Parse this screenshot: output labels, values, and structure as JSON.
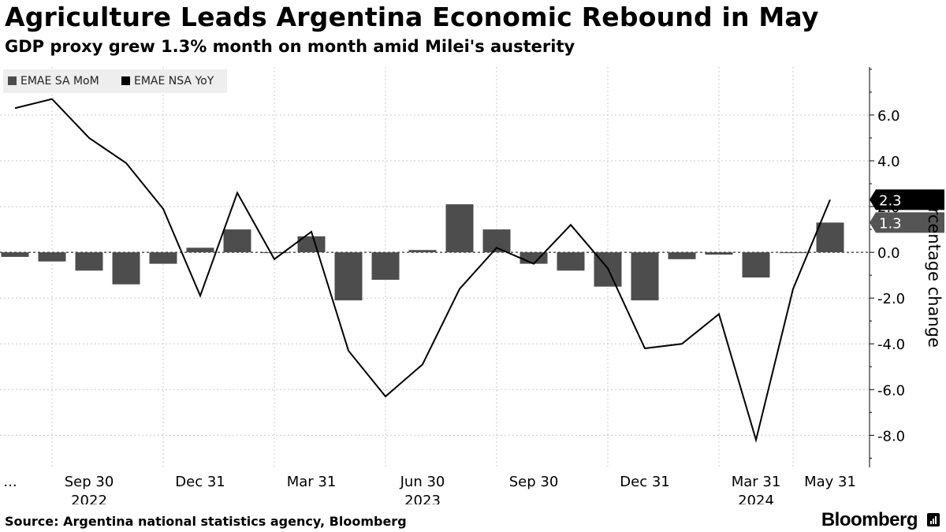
{
  "header": {
    "title": "Agriculture Leads Argentina Economic Rebound in May",
    "subtitle": "GDP proxy grew 1.3% month on month amid Milei's austerity"
  },
  "footer": {
    "source": "Source: Argentina national statistics agency, Bloomberg",
    "brand": "Bloomberg"
  },
  "chart_data": {
    "type": "bar",
    "title": "Agriculture Leads Argentina Economic Rebound in May",
    "subtitle": "GDP proxy grew 1.3% month on month amid Milei's austerity",
    "ylabel": "Percentage change",
    "xlabel": "",
    "ylim": [
      -9.4,
      8.1
    ],
    "y_ticks": [
      6.0,
      4.0,
      2.0,
      0.0,
      -2.0,
      -4.0,
      -6.0,
      -8.0
    ],
    "y_tick_labels": [
      "6.0",
      "4.0",
      "2.0",
      "0.0",
      "-2.0",
      "-4.0",
      "-6.0",
      "-8.0"
    ],
    "categories": [
      "Jul 2022",
      "Aug 2022",
      "Sep 2022",
      "Oct 2022",
      "Nov 2022",
      "Dec 2022",
      "Jan 2023",
      "Feb 2023",
      "Mar 2023",
      "Apr 2023",
      "May 2023",
      "Jun 2023",
      "Jul 2023",
      "Aug 2023",
      "Sep 2023",
      "Oct 2023",
      "Nov 2023",
      "Dec 2023",
      "Jan 2024",
      "Feb 2024",
      "Mar 2024",
      "Apr 2024",
      "May 2024"
    ],
    "x_ticks": [
      {
        "index": 0,
        "label": "...",
        "year": ""
      },
      {
        "index": 2,
        "label": "Sep 30",
        "year": "2022"
      },
      {
        "index": 5,
        "label": "Dec 31",
        "year": ""
      },
      {
        "index": 8,
        "label": "Mar 31",
        "year": ""
      },
      {
        "index": 11,
        "label": "Jun 30",
        "year": "2023"
      },
      {
        "index": 14,
        "label": "Sep 30",
        "year": ""
      },
      {
        "index": 17,
        "label": "Dec 31",
        "year": ""
      },
      {
        "index": 20,
        "label": "Mar 31",
        "year": "2024"
      },
      {
        "index": 22,
        "label": "May 31",
        "year": ""
      }
    ],
    "grid": true,
    "legend_position": "top-left",
    "series": [
      {
        "name": "EMAE SA MoM",
        "kind": "bar",
        "color": "#4d4d4d",
        "values": [
          -0.2,
          -0.4,
          -0.8,
          -1.4,
          -0.5,
          0.2,
          1.0,
          0.0,
          0.7,
          -2.1,
          -1.2,
          0.1,
          2.1,
          1.0,
          -0.5,
          -0.8,
          -1.5,
          -2.1,
          -0.3,
          -0.1,
          -1.1,
          0.0,
          1.3
        ],
        "last_label": "1.3"
      },
      {
        "name": "EMAE NSA YoY",
        "kind": "line",
        "color": "#000000",
        "values": [
          6.3,
          6.7,
          5.0,
          3.9,
          1.9,
          -1.9,
          2.6,
          -0.3,
          0.9,
          -4.3,
          -6.3,
          -4.9,
          -1.6,
          0.2,
          -0.5,
          1.2,
          -0.7,
          -4.2,
          -4.0,
          -2.7,
          -8.2,
          -1.6,
          2.3
        ],
        "last_label": "2.3"
      }
    ]
  }
}
